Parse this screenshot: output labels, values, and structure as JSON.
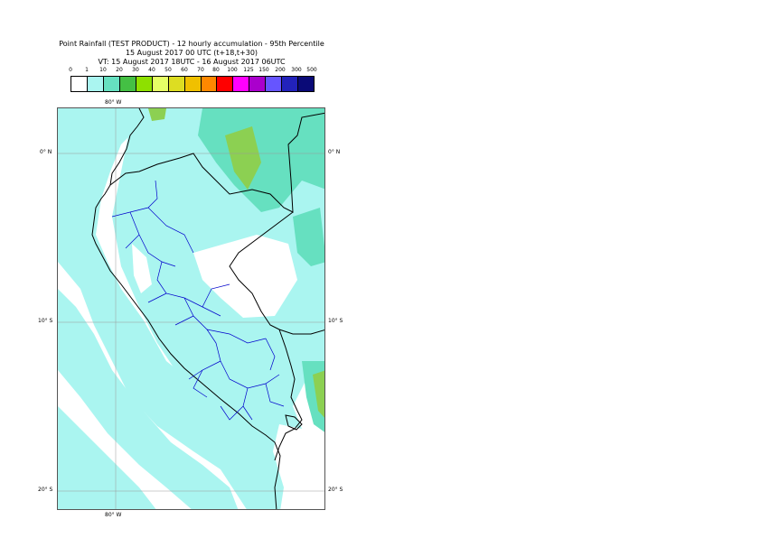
{
  "title": {
    "line1": "Point Rainfall (TEST PRODUCT) - 12 hourly accumulation - 95th Percentile",
    "line2": "15 August 2017 00 UTC (t+18,t+30)",
    "line3": "VT: 15 August 2017 18UTC - 16 August 2017 06UTC"
  },
  "legend": {
    "thresholds": [
      "0",
      "1",
      "10",
      "20",
      "30",
      "40",
      "50",
      "60",
      "70",
      "80",
      "100",
      "125",
      "150",
      "200",
      "300",
      "500"
    ],
    "colors": [
      "#ffffff",
      "#aaf5f0",
      "#66e0c0",
      "#44c044",
      "#8ee000",
      "#e6ff66",
      "#dddd22",
      "#f0c000",
      "#ff8800",
      "#ff0000",
      "#ff00ff",
      "#aa00cc",
      "#6655ff",
      "#2222bb",
      "#0a0a77"
    ]
  },
  "map": {
    "lon_labels": [
      "80° W",
      "80° W"
    ],
    "lat_labels": [
      "0° N",
      "10° S",
      "20° S"
    ],
    "sea_rain_color": "#aaf5f0",
    "heavier_rain_color": "#66e0c0",
    "heaviest_rain_color": "#8cd052",
    "coast_color": "#000000",
    "province_color": "#0000cc"
  }
}
